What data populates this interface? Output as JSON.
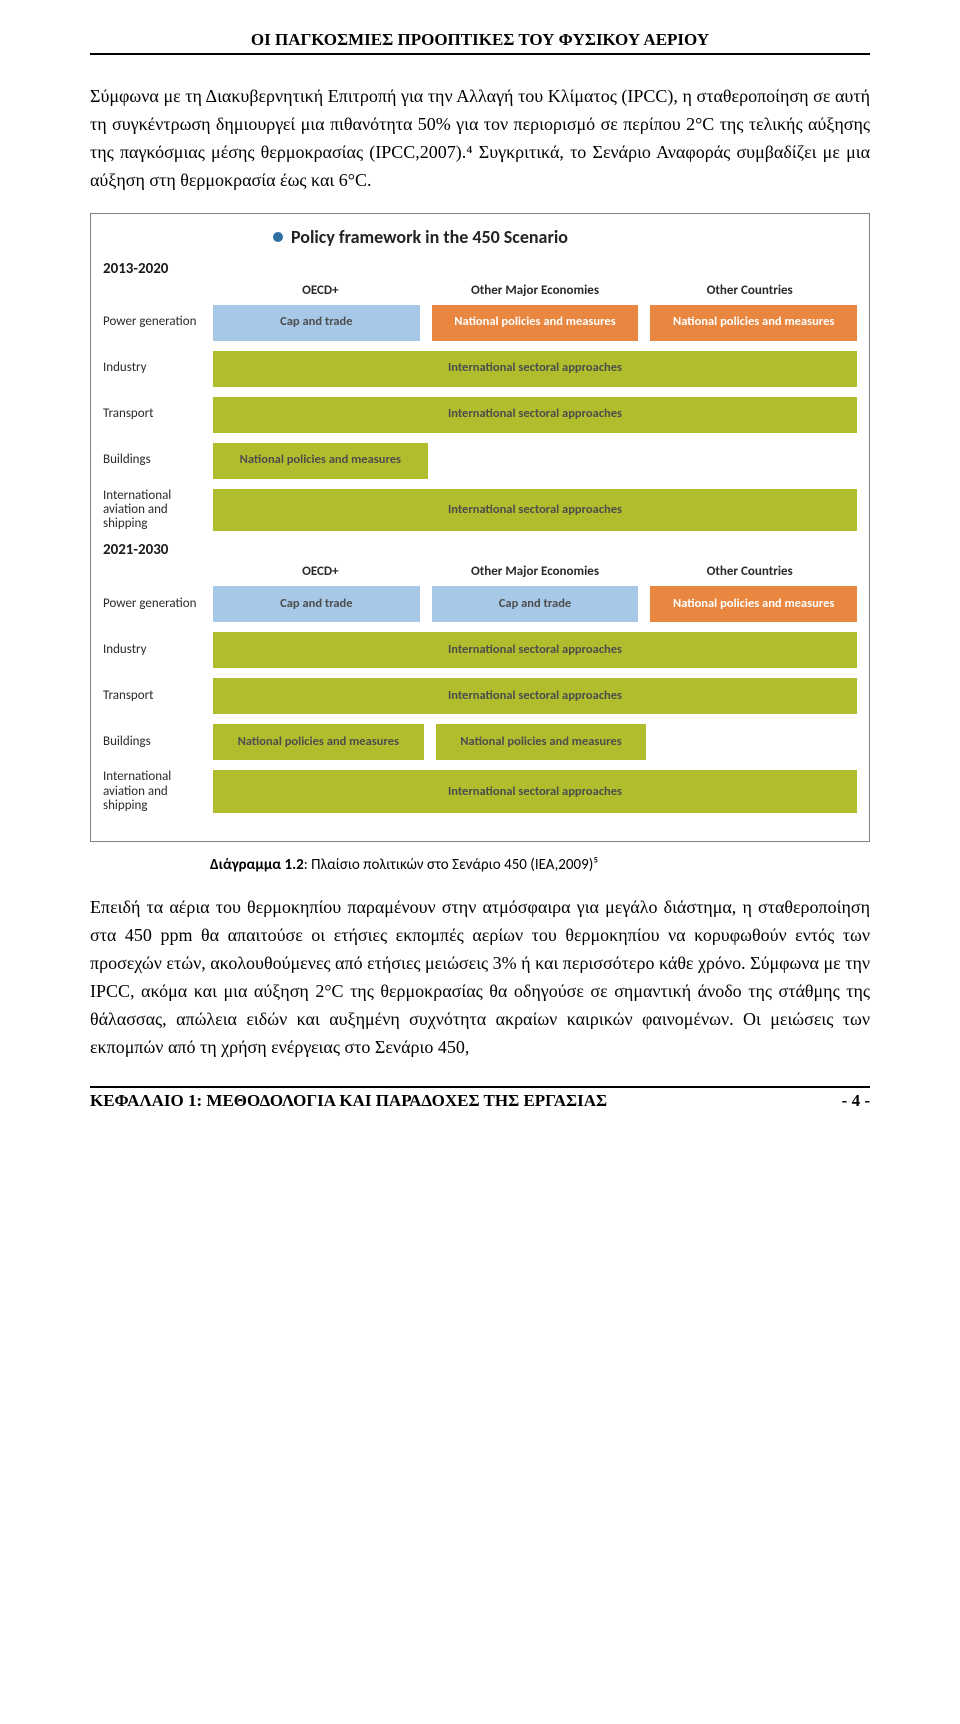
{
  "header": "ΟΙ ΠΑΓΚΟΣΜΙΕΣ ΠΡΟΟΠΤΙΚΕΣ ΤΟΥ ΦΥΣΙΚΟΥ ΑΕΡΙΟΥ",
  "para1": "Σύμφωνα με τη Διακυβερνητική Επιτροπή για την Αλλαγή του Κλίματος (IPCC), η σταθεροποίηση σε αυτή τη συγκέντρωση δημιουργεί μια πιθανότητα 50% για τον περιορισμό σε περίπου 2°C της τελικής αύξησης της παγκόσμιας μέσης θερμοκρασίας (IPCC,2007).⁴ Συγκριτικά, το Σενάριο Αναφοράς συμβαδίζει με μια αύξηση στη θερμοκρασία έως και 6°C.",
  "caption_bold": "Διάγραμμα 1.2",
  "caption_rest": ": Πλαίσιο πολιτικών στο Σενάριο 450 (IEA,2009)⁵",
  "para2": "Επειδή τα αέρια του θερμοκηπίου παραμένουν στην ατμόσφαιρα για μεγάλο διάστημα, η σταθεροποίηση στα 450 ppm θα απαιτούσε οι ετήσιες εκπομπές αερίων του θερμοκηπίου να κορυφωθούν εντός των προσεχών ετών, ακολουθούμενες από ετήσιες μειώσεις 3% ή και περισσότερο κάθε χρόνο. Σύμφωνα με την IPCC, ακόμα και μια αύξηση 2°C της θερμοκρασίας θα οδηγούσε σε σημαντική άνοδο της στάθμης της θάλασσας, απώλεια ειδών και αυξημένη συχνότητα ακραίων καιρικών φαινομένων. Οι μειώσεις των εκπομπών από τη χρήση ενέργειας στο Σενάριο 450,",
  "footer_left": "ΚΕΦΑΛΑΙΟ 1: ΜΕΘΟΔΟΛΟΓΙΑ ΚΑΙ ΠΑΡΑΔΟΧΕΣ ΤΗΣ ΕΡΓΑΣΙΑΣ",
  "footer_right": "- 4 -",
  "diagram": {
    "title": "Policy framework in the 450 Scenario",
    "dot_color": "#2e6ea1",
    "colors": {
      "blue": "#a7c8e6",
      "orange": "#e9863f",
      "green": "#b1bd2c",
      "border": "#7f7f7f",
      "text": "#2a2a2a"
    },
    "column_headers": [
      "OECD+",
      "Other Major Economies",
      "Other Countries"
    ],
    "row_labels": {
      "power": "Power generation",
      "industry": "Industry",
      "transport": "Transport",
      "buildings": "Buildings",
      "aviation": "International aviation and shipping"
    },
    "cell_texts": {
      "cap": "Cap and trade",
      "npm": "National policies and measures",
      "isa": "International sectoral approaches"
    },
    "periods": {
      "p1": {
        "label": "2013-2020",
        "rows": [
          {
            "key": "power",
            "cells": [
              {
                "t": "cap",
                "c": "blue"
              },
              {
                "t": "npm",
                "c": "orange"
              },
              {
                "t": "npm",
                "c": "orange"
              }
            ]
          },
          {
            "key": "industry",
            "cells": [
              {
                "t": "isa",
                "c": "green",
                "span": true
              }
            ]
          },
          {
            "key": "transport",
            "cells": [
              {
                "t": "isa",
                "c": "green",
                "span": true
              }
            ]
          },
          {
            "key": "buildings",
            "cells": [
              {
                "t": "npm",
                "c": "green"
              }
            ]
          },
          {
            "key": "aviation",
            "cells": [
              {
                "t": "isa",
                "c": "green",
                "span": true
              }
            ]
          }
        ]
      },
      "p2": {
        "label": "2021-2030",
        "rows": [
          {
            "key": "power",
            "cells": [
              {
                "t": "cap",
                "c": "blue"
              },
              {
                "t": "cap",
                "c": "blue"
              },
              {
                "t": "npm",
                "c": "orange"
              }
            ]
          },
          {
            "key": "industry",
            "cells": [
              {
                "t": "isa",
                "c": "green",
                "span": true
              }
            ]
          },
          {
            "key": "transport",
            "cells": [
              {
                "t": "isa",
                "c": "green",
                "span": true
              }
            ]
          },
          {
            "key": "buildings",
            "cells": [
              {
                "t": "npm",
                "c": "green"
              },
              {
                "t": "npm",
                "c": "green"
              }
            ]
          },
          {
            "key": "aviation",
            "cells": [
              {
                "t": "isa",
                "c": "green",
                "span": true
              }
            ]
          }
        ]
      }
    }
  }
}
